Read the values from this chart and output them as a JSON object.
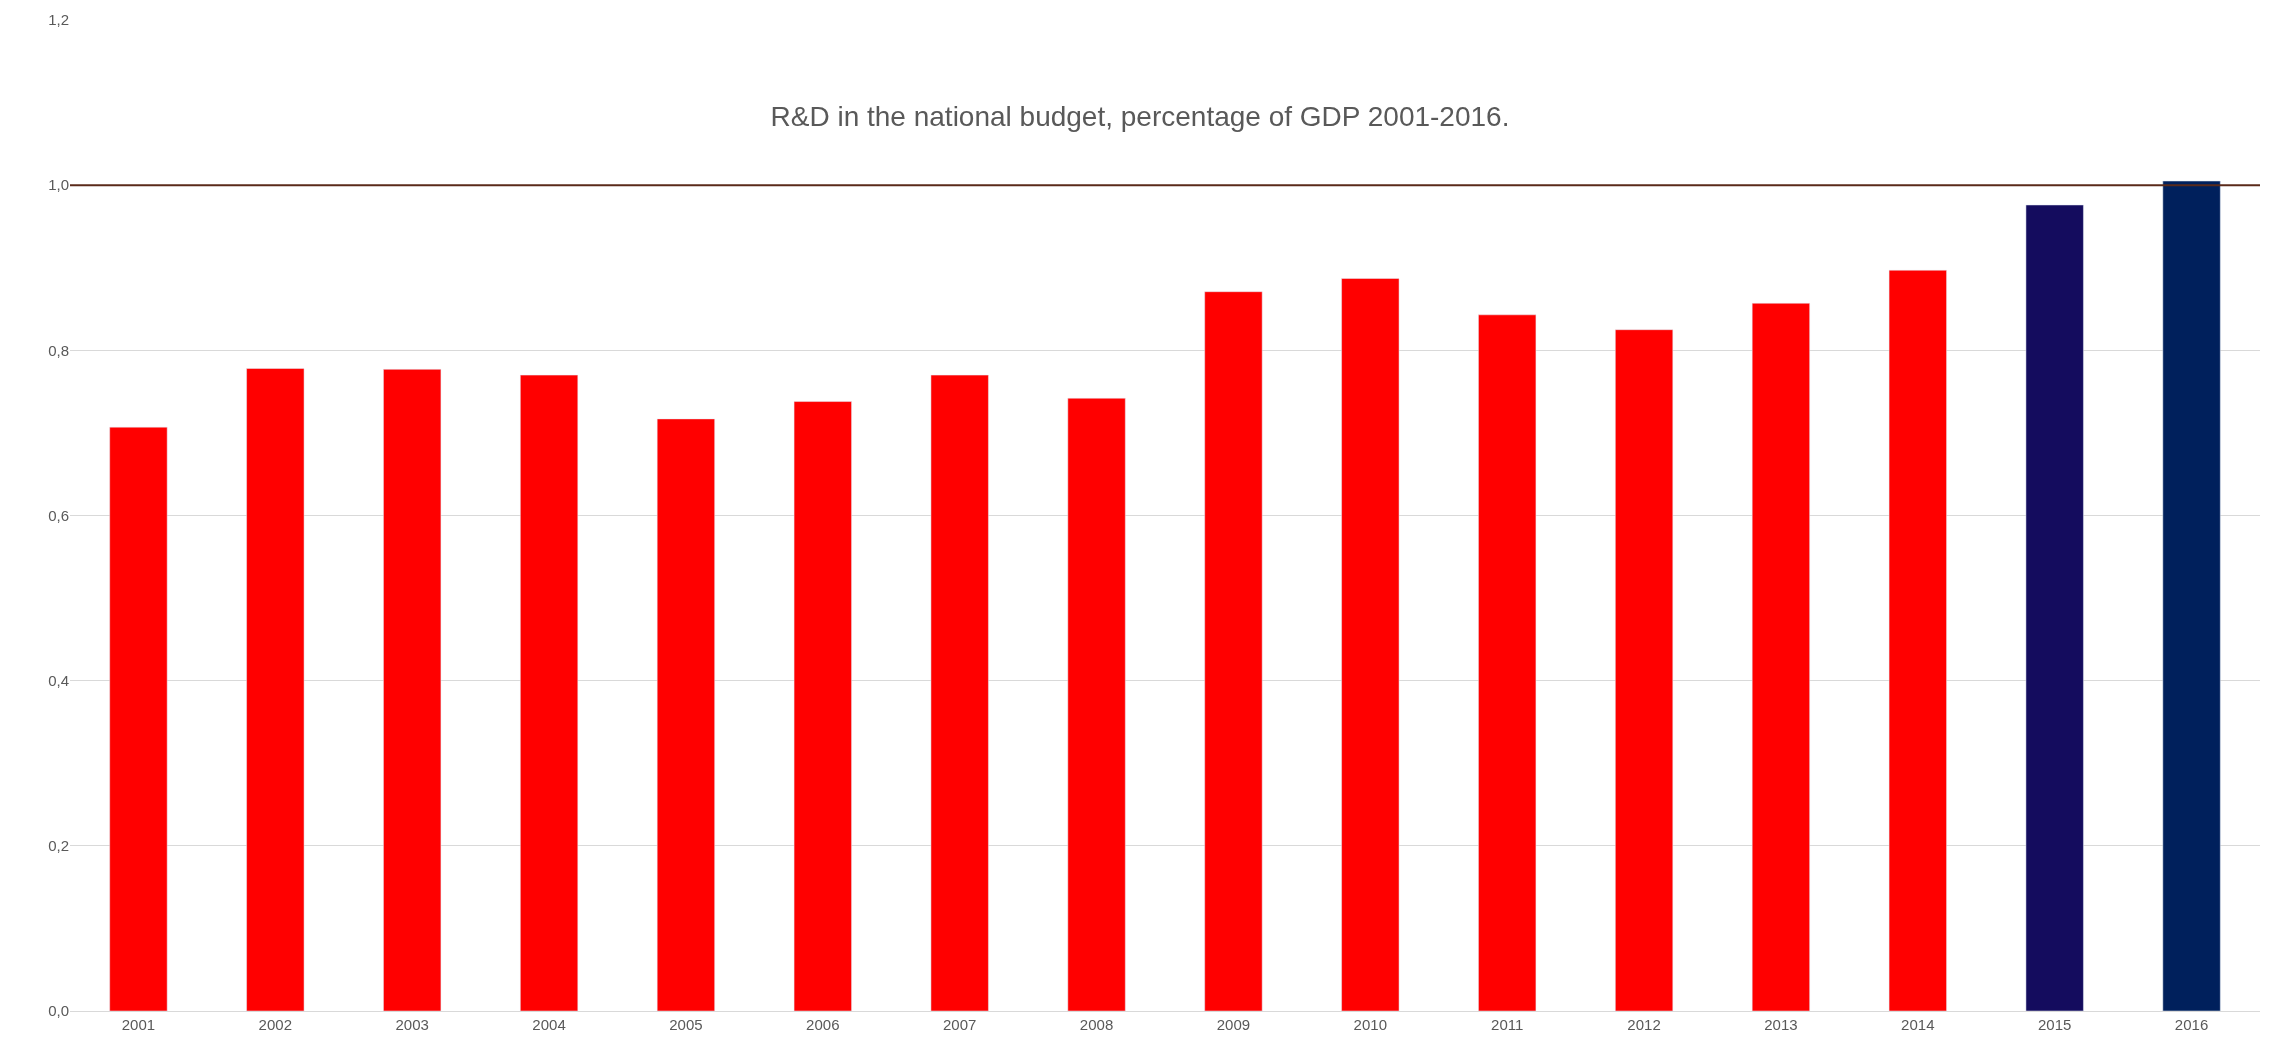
{
  "chart_data": {
    "type": "bar",
    "title": "R&D in the national budget, percentage of GDP 2001-2016.",
    "categories": [
      "2001",
      "2002",
      "2003",
      "2004",
      "2005",
      "2006",
      "2007",
      "2008",
      "2009",
      "2010",
      "2011",
      "2012",
      "2013",
      "2014",
      "2015",
      "2016"
    ],
    "values": [
      0.707,
      0.778,
      0.777,
      0.77,
      0.717,
      0.738,
      0.77,
      0.742,
      0.871,
      0.887,
      0.843,
      0.825,
      0.857,
      0.897,
      0.976,
      1.005
    ],
    "colors": [
      "#ff0000",
      "#ff0000",
      "#ff0000",
      "#ff0000",
      "#ff0000",
      "#ff0000",
      "#ff0000",
      "#ff0000",
      "#ff0000",
      "#ff0000",
      "#ff0000",
      "#ff0000",
      "#ff0000",
      "#ff0000",
      "#140c5e",
      "#00205c"
    ],
    "ylim": [
      0,
      1.2
    ],
    "yticks": [
      {
        "value": 0,
        "label": "0,0"
      },
      {
        "value": 0.2,
        "label": "0,2"
      },
      {
        "value": 0.4,
        "label": "0,4"
      },
      {
        "value": 0.6,
        "label": "0,6"
      },
      {
        "value": 0.8,
        "label": "0,8"
      },
      {
        "value": 1.0,
        "label": "1,0"
      },
      {
        "value": 1.2,
        "label": "1,2"
      }
    ],
    "ref_lines": [
      {
        "axis": "y",
        "value": 1.0,
        "color": "#5a2a1a"
      }
    ],
    "grid": "y"
  }
}
